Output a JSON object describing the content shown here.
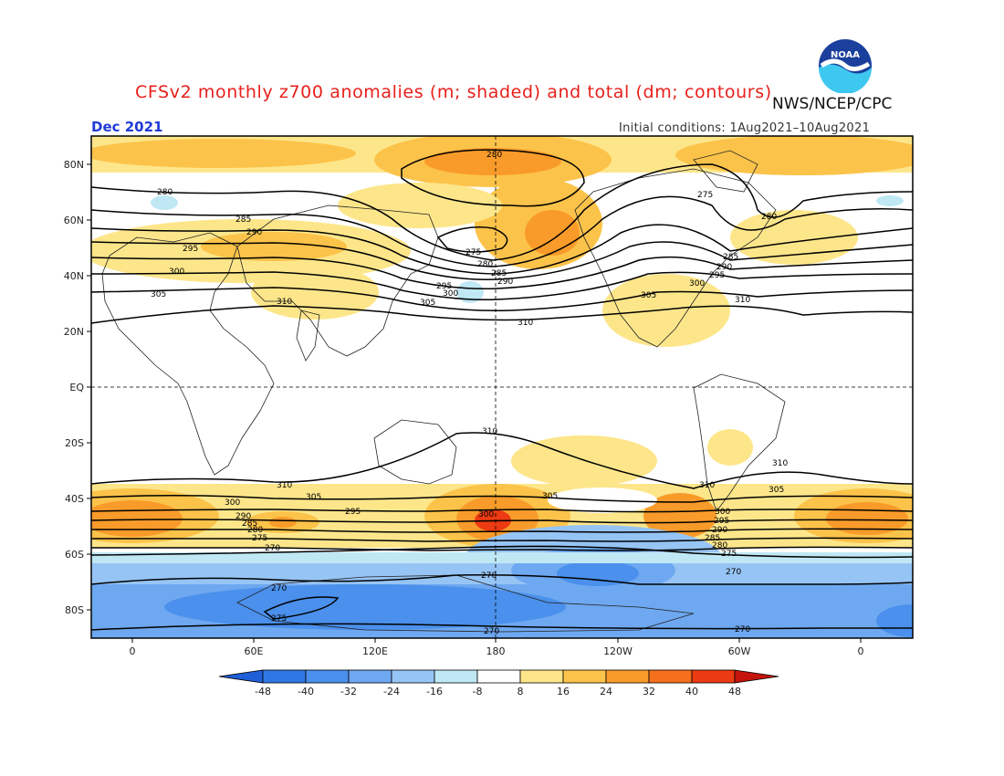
{
  "title": "CFSv2 monthly z700 anomalies (m; shaded) and total (dm; contours)",
  "organization": "NWS/NCEP/CPC",
  "valid_month": "Dec 2021",
  "initial_conditions": "Initial conditions: 1Aug2021–10Aug2021",
  "logo": {
    "text": "NOAA",
    "icon": "noaa-logo-icon"
  },
  "latitude_labels": [
    "80N",
    "60N",
    "40N",
    "20N",
    "EQ",
    "20S",
    "40S",
    "60S",
    "80S"
  ],
  "longitude_labels": [
    "0",
    "60E",
    "120E",
    "180",
    "120W",
    "60W",
    "0"
  ],
  "colorbar": {
    "ticks": [
      "-48",
      "-40",
      "-32",
      "-24",
      "-16",
      "-8",
      "8",
      "16",
      "24",
      "32",
      "40",
      "48"
    ],
    "colors": [
      "#1f5fd8",
      "#2f77e6",
      "#4a90ec",
      "#6ea8f0",
      "#96c4f4",
      "#bfe8f4",
      "#ffffff",
      "#fde68a",
      "#fcc34a",
      "#f99b2a",
      "#f56f1c",
      "#ec3a12",
      "#c4140c"
    ]
  },
  "contour_labels": [
    "270",
    "275",
    "280",
    "285",
    "290",
    "295",
    "300",
    "305",
    "310"
  ]
}
